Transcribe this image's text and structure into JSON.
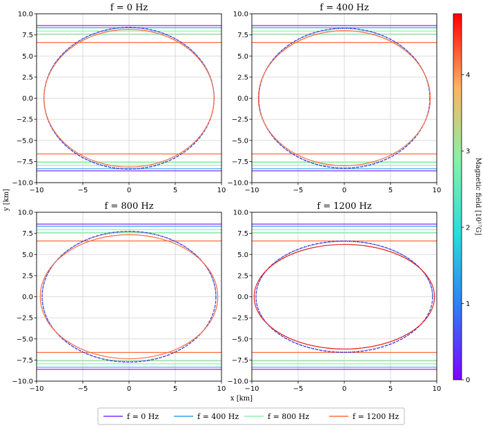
{
  "chart_data": {
    "type": "line",
    "panels": [
      {
        "title": "f = 0 Hz",
        "xlim": [
          -10,
          10
        ],
        "ylim": [
          -10,
          10
        ],
        "shapes": [
          {
            "series": "f = 0 Hz",
            "style": "dashed",
            "a": 9.2,
            "b": 8.4
          },
          {
            "series": "f = 400 Hz",
            "style": "dotted",
            "a": 9.2,
            "b": 8.35
          },
          {
            "series": "f = 1200 Hz",
            "style": "solid",
            "a": 9.2,
            "b": 8.15
          }
        ],
        "hlines": [
          {
            "series": "f = 0 Hz",
            "y": 8.6
          },
          {
            "series": "f = 400 Hz",
            "y": 8.35
          },
          {
            "series": "f = 800 Hz",
            "y": 7.95
          },
          {
            "series": "f = 800 Hz",
            "y": 7.6
          },
          {
            "series": "f = 1200 Hz",
            "y": 6.6
          }
        ]
      },
      {
        "title": "f = 400 Hz",
        "xlim": [
          -10,
          10
        ],
        "ylim": [
          -10,
          10
        ],
        "shapes": [
          {
            "series": "f = 0 Hz",
            "style": "dashed",
            "a": 9.25,
            "b": 8.3
          },
          {
            "series": "f = 400 Hz",
            "style": "dotted",
            "a": 9.25,
            "b": 8.25
          },
          {
            "series": "f = 1200 Hz",
            "style": "solid",
            "a": 9.3,
            "b": 8.0
          }
        ],
        "hlines": [
          {
            "series": "f = 0 Hz",
            "y": 8.6
          },
          {
            "series": "f = 400 Hz",
            "y": 8.35
          },
          {
            "series": "f = 800 Hz",
            "y": 7.95
          },
          {
            "series": "f = 800 Hz",
            "y": 7.6
          },
          {
            "series": "f = 1200 Hz",
            "y": 6.6
          }
        ]
      },
      {
        "title": "f = 800 Hz",
        "xlim": [
          -10,
          10
        ],
        "ylim": [
          -10,
          10
        ],
        "shapes": [
          {
            "series": "f = 0 Hz",
            "style": "dashed",
            "a": 9.4,
            "b": 7.75
          },
          {
            "series": "f = 400 Hz",
            "style": "dotted",
            "a": 9.4,
            "b": 7.7
          },
          {
            "series": "f = 1200 Hz",
            "style": "solid",
            "a": 9.6,
            "b": 7.35
          }
        ],
        "hlines": [
          {
            "series": "f = 0 Hz",
            "y": 8.6
          },
          {
            "series": "f = 400 Hz",
            "y": 8.35
          },
          {
            "series": "f = 800 Hz",
            "y": 7.95
          },
          {
            "series": "f = 800 Hz",
            "y": 7.6
          },
          {
            "series": "f = 1200 Hz",
            "y": 6.6
          }
        ]
      },
      {
        "title": "f = 1200 Hz",
        "xlim": [
          -10,
          10
        ],
        "ylim": [
          -10,
          10
        ],
        "shapes": [
          {
            "series": "f = 0 Hz",
            "style": "dashed",
            "a": 9.55,
            "b": 6.6
          },
          {
            "series": "f = 400 Hz",
            "style": "dotted",
            "a": 9.55,
            "b": 6.55
          },
          {
            "series": "f = 1200 Hz",
            "style": "solid",
            "a": 9.75,
            "b": 6.2
          }
        ],
        "hlines": [
          {
            "series": "f = 0 Hz",
            "y": 8.6
          },
          {
            "series": "f = 400 Hz",
            "y": 8.35
          },
          {
            "series": "f = 800 Hz",
            "y": 7.95
          },
          {
            "series": "f = 800 Hz",
            "y": 7.6
          },
          {
            "series": "f = 1200 Hz",
            "y": 6.6
          }
        ]
      }
    ],
    "xticks": [
      "−10",
      "−5",
      "0",
      "5",
      "10"
    ],
    "yticks": [
      "10.0",
      "7.5",
      "5.0",
      "2.5",
      "0.0",
      "−2.5",
      "−5.0",
      "−7.5",
      "−10.0"
    ],
    "xlabel": "x [km]",
    "ylabel": "y [km]",
    "grid": true,
    "colorbar": {
      "label": "Magnetic field [10¹⁷G]",
      "range": [
        0,
        4.8
      ],
      "ticks": [
        "0",
        "1",
        "2",
        "3",
        "4"
      ]
    },
    "legend": {
      "placement": "bottom-center",
      "entries": [
        {
          "label": "f = 0 Hz",
          "color": "#7b2bff"
        },
        {
          "label": "f = 400 Hz",
          "color": "#2fa4e9"
        },
        {
          "label": "f = 800 Hz",
          "color": "#8ef0a8"
        },
        {
          "label": "f = 1200 Hz",
          "color": "#ff6a3d"
        }
      ]
    },
    "series_colors": {
      "f = 0 Hz": "#7b2bff",
      "f = 400 Hz": "#2fa4e9",
      "f = 800 Hz": "#8ef0a8",
      "f = 1200 Hz": "#ff6a3d"
    },
    "shape_colors": {
      "dashed": "#5a2bd6",
      "dotted": "#1f5fd6",
      "solid_small": "#ff6a3d",
      "solid_large": "#e8201a"
    }
  }
}
